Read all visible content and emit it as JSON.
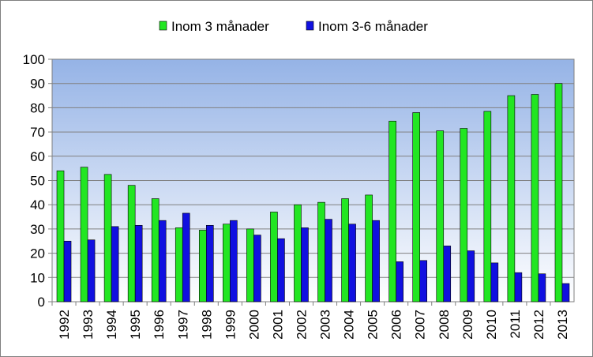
{
  "chart_data": {
    "type": "bar",
    "title": "",
    "xlabel": "",
    "ylabel": "",
    "ylim": [
      0,
      100
    ],
    "yticks": [
      0,
      10,
      20,
      30,
      40,
      50,
      60,
      70,
      80,
      90,
      100
    ],
    "grid": true,
    "legend_position": "top-center",
    "categories": [
      "1992",
      "1993",
      "1994",
      "1995",
      "1996",
      "1997",
      "1998",
      "1999",
      "2000",
      "2001",
      "2002",
      "2003",
      "2004",
      "2005",
      "2006",
      "2007",
      "2008",
      "2009",
      "2010",
      "2011",
      "2012",
      "2013"
    ],
    "series": [
      {
        "name": "Inom 3 månader",
        "color": "#22e622",
        "values": [
          54,
          55.5,
          52.5,
          48,
          42.5,
          30.5,
          29.5,
          32,
          30,
          37,
          40,
          41,
          42.5,
          44,
          74.5,
          78,
          70.5,
          71.5,
          78.5,
          85,
          85.5,
          90
        ]
      },
      {
        "name": "Inom 3-6 månader",
        "color": "#1010e0",
        "values": [
          25,
          25.5,
          31,
          31.5,
          33.5,
          36.5,
          31.5,
          33.5,
          27.5,
          26,
          30.5,
          34,
          32,
          33.5,
          16.5,
          17,
          23,
          21,
          16,
          12,
          11.5,
          7.5
        ]
      }
    ],
    "plot_gradient": [
      "#95b3e6",
      "#ffffff"
    ]
  }
}
